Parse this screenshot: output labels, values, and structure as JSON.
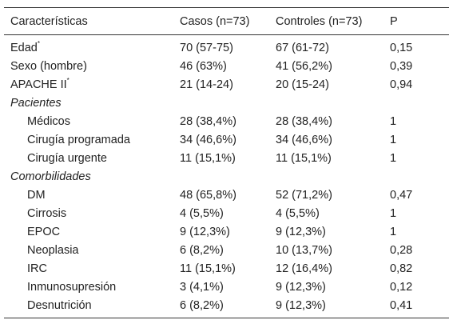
{
  "table": {
    "headers": [
      "Características",
      "Casos (n=73)",
      "Controles (n=73)",
      "P"
    ],
    "rows": [
      {
        "type": "data",
        "label": "Edad",
        "sup": "*",
        "casos": "70 (57-75)",
        "controles": "67 (61-72)",
        "p": "0,15"
      },
      {
        "type": "data",
        "label": "Sexo (hombre)",
        "casos": "46 (63%)",
        "controles": "41 (56,2%)",
        "p": "0,39"
      },
      {
        "type": "data",
        "label": "APACHE II",
        "sup": "*",
        "casos": "21 (14-24)",
        "controles": "20 (15-24)",
        "p": "0,94"
      },
      {
        "type": "section",
        "label": "Pacientes"
      },
      {
        "type": "sub",
        "label": "Médicos",
        "casos": "28 (38,4%)",
        "controles": "28 (38,4%)",
        "p": "1"
      },
      {
        "type": "sub",
        "label": "Cirugía programada",
        "casos": "34 (46,6%)",
        "controles": "34 (46,6%)",
        "p": "1"
      },
      {
        "type": "sub",
        "label": "Cirugía urgente",
        "casos": "11 (15,1%)",
        "controles": "11 (15,1%)",
        "p": "1"
      },
      {
        "type": "section",
        "label": "Comorbilidades"
      },
      {
        "type": "sub",
        "label": "DM",
        "casos": "48 (65,8%)",
        "controles": "52 (71,2%)",
        "p": "0,47"
      },
      {
        "type": "sub",
        "label": "Cirrosis",
        "casos": "4 (5,5%)",
        "controles": "4 (5,5%)",
        "p": "1"
      },
      {
        "type": "sub",
        "label": "EPOC",
        "casos": "9 (12,3%)",
        "controles": "9 (12,3%)",
        "p": "1"
      },
      {
        "type": "sub",
        "label": "Neoplasia",
        "casos": "6 (8,2%)",
        "controles": "10 (13,7%)",
        "p": "0,28"
      },
      {
        "type": "sub",
        "label": "IRC",
        "casos": "11 (15,1%)",
        "controles": "12 (16,4%)",
        "p": "0,82"
      },
      {
        "type": "sub",
        "label": "Inmunosupresión",
        "casos": "3 (4,1%)",
        "controles": "9 (12,3%)",
        "p": "0,12"
      },
      {
        "type": "sub",
        "label": "Desnutrición",
        "casos": "6 (8,2%)",
        "controles": "9 (12,3%)",
        "p": "0,41"
      }
    ]
  }
}
